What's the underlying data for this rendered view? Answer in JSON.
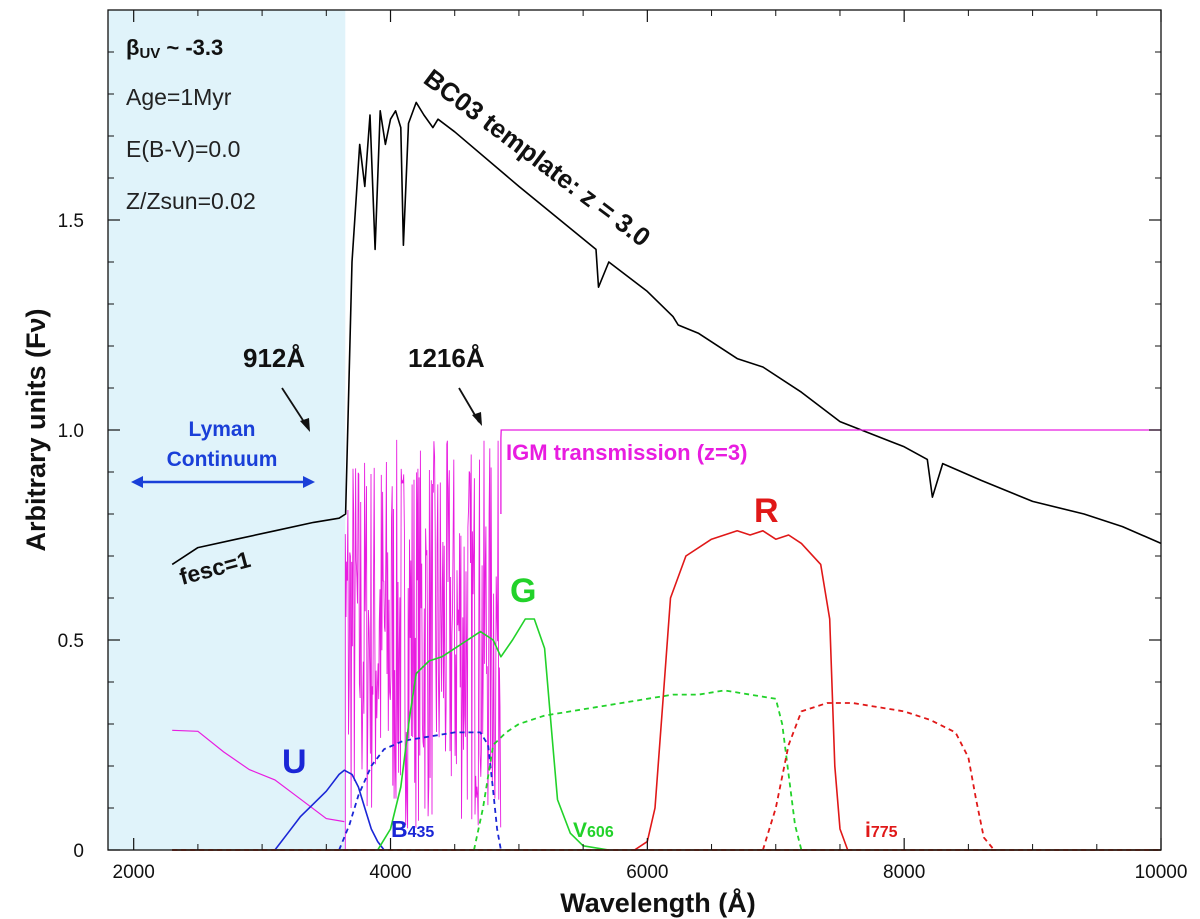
{
  "chart_data": {
    "type": "line",
    "xlabel": "Wavelength (Å)",
    "ylabel": "Arbitrary units (Fν)",
    "xlim": [
      1800,
      10000
    ],
    "ylim": [
      0,
      2.0
    ],
    "x_ticks": [
      "2000",
      "4000",
      "6000",
      "8000",
      "10000"
    ],
    "y_ticks": [
      "0",
      "0.5",
      "1.0",
      "1.5"
    ],
    "grid": false,
    "shaded_region": {
      "x": [
        1800,
        3648
      ],
      "label": "Lyman Continuum"
    },
    "annotations": {
      "beta_prefix": "β",
      "beta_sub": "UV",
      "beta_value": " ~ -3.3",
      "age": "Age=1Myr",
      "ebv": "E(B-V)=0.0",
      "metallicity": "Z/Zsun=0.02",
      "template": "BC03 template: z = 3.0",
      "lyman_break": "912Å",
      "lya": "1216Å",
      "lyman_line1": "Lyman",
      "lyman_line2": "Continuum",
      "fesc": "fesc=1",
      "igm": "IGM transmission (z=3)"
    },
    "series": [
      {
        "name": "",
        "label_text": "BC03 template: z = 3.0",
        "color": "#000000",
        "style": "solid",
        "points": [
          [
            2300,
            0.68
          ],
          [
            2500,
            0.72
          ],
          [
            2800,
            0.74
          ],
          [
            3100,
            0.76
          ],
          [
            3400,
            0.78
          ],
          [
            3600,
            0.79
          ],
          [
            3650,
            0.8
          ],
          [
            3700,
            1.4
          ],
          [
            3760,
            1.68
          ],
          [
            3800,
            1.58
          ],
          [
            3840,
            1.75
          ],
          [
            3880,
            1.43
          ],
          [
            3920,
            1.76
          ],
          [
            3960,
            1.68
          ],
          [
            4000,
            1.74
          ],
          [
            4040,
            1.76
          ],
          [
            4080,
            1.72
          ],
          [
            4100,
            1.44
          ],
          [
            4140,
            1.73
          ],
          [
            4200,
            1.78
          ],
          [
            4260,
            1.75
          ],
          [
            4330,
            1.72
          ],
          [
            4370,
            1.74
          ],
          [
            4500,
            1.71
          ],
          [
            5000,
            1.58
          ],
          [
            5400,
            1.48
          ],
          [
            5600,
            1.43
          ],
          [
            5620,
            1.34
          ],
          [
            5700,
            1.4
          ],
          [
            6000,
            1.33
          ],
          [
            6200,
            1.27
          ],
          [
            6240,
            1.25
          ],
          [
            6400,
            1.23
          ],
          [
            6700,
            1.17
          ],
          [
            6900,
            1.15
          ],
          [
            7200,
            1.09
          ],
          [
            7500,
            1.02
          ],
          [
            8000,
            0.96
          ],
          [
            8180,
            0.93
          ],
          [
            8220,
            0.84
          ],
          [
            8300,
            0.92
          ],
          [
            8600,
            0.88
          ],
          [
            9000,
            0.83
          ],
          [
            9400,
            0.8
          ],
          [
            9700,
            0.77
          ],
          [
            10000,
            0.73
          ]
        ]
      },
      {
        "name": "",
        "label_text": "IGM transmission (z=3)",
        "color": "#e81ce0",
        "style": "igm",
        "points": [
          [
            2300,
            0.3
          ],
          [
            2500,
            0.27
          ],
          [
            2700,
            0.24
          ],
          [
            2900,
            0.2
          ],
          [
            3100,
            0.16
          ],
          [
            3300,
            0.12
          ],
          [
            3500,
            0.08
          ],
          [
            3640,
            0.06
          ],
          [
            3648,
            0.98
          ],
          [
            4860,
            0.98
          ],
          [
            4862,
            1.0
          ],
          [
            10000,
            1.0
          ]
        ],
        "forest_range": [
          3648,
          4860
        ],
        "forest_min": 0.05,
        "forest_max": 0.98
      },
      {
        "name": "U",
        "color": "#1a26d6",
        "style": "solid",
        "points": [
          [
            3100,
            0.0
          ],
          [
            3200,
            0.04
          ],
          [
            3300,
            0.08
          ],
          [
            3400,
            0.11
          ],
          [
            3500,
            0.14
          ],
          [
            3550,
            0.16
          ],
          [
            3600,
            0.18
          ],
          [
            3640,
            0.19
          ],
          [
            3700,
            0.18
          ],
          [
            3750,
            0.15
          ],
          [
            3800,
            0.1
          ],
          [
            3850,
            0.05
          ],
          [
            3900,
            0.02
          ],
          [
            3950,
            0.0
          ]
        ]
      },
      {
        "name": "B435",
        "color": "#1a26d6",
        "style": "dashed",
        "points": [
          [
            3600,
            0.0
          ],
          [
            3680,
            0.06
          ],
          [
            3750,
            0.13
          ],
          [
            3850,
            0.2
          ],
          [
            3950,
            0.24
          ],
          [
            4100,
            0.26
          ],
          [
            4300,
            0.27
          ],
          [
            4500,
            0.28
          ],
          [
            4700,
            0.28
          ],
          [
            4760,
            0.25
          ],
          [
            4800,
            0.14
          ],
          [
            4830,
            0.05
          ],
          [
            4860,
            0.0
          ]
        ]
      },
      {
        "name": "G",
        "color": "#22d22a",
        "style": "solid",
        "points": [
          [
            3900,
            0.0
          ],
          [
            4000,
            0.05
          ],
          [
            4080,
            0.15
          ],
          [
            4150,
            0.32
          ],
          [
            4200,
            0.42
          ],
          [
            4300,
            0.45
          ],
          [
            4400,
            0.46
          ],
          [
            4500,
            0.48
          ],
          [
            4600,
            0.5
          ],
          [
            4700,
            0.52
          ],
          [
            4800,
            0.5
          ],
          [
            4860,
            0.46
          ],
          [
            4950,
            0.5
          ],
          [
            5050,
            0.55
          ],
          [
            5120,
            0.55
          ],
          [
            5200,
            0.48
          ],
          [
            5250,
            0.3
          ],
          [
            5300,
            0.12
          ],
          [
            5400,
            0.04
          ],
          [
            5500,
            0.01
          ],
          [
            5700,
            0.0
          ]
        ]
      },
      {
        "name": "V606",
        "color": "#22d22a",
        "style": "dashed",
        "points": [
          [
            4650,
            0.0
          ],
          [
            4720,
            0.1
          ],
          [
            4800,
            0.25
          ],
          [
            4900,
            0.28
          ],
          [
            5000,
            0.3
          ],
          [
            5200,
            0.32
          ],
          [
            5400,
            0.33
          ],
          [
            5600,
            0.34
          ],
          [
            5800,
            0.35
          ],
          [
            6000,
            0.36
          ],
          [
            6200,
            0.37
          ],
          [
            6400,
            0.37
          ],
          [
            6600,
            0.38
          ],
          [
            6800,
            0.37
          ],
          [
            7000,
            0.36
          ],
          [
            7050,
            0.3
          ],
          [
            7100,
            0.18
          ],
          [
            7150,
            0.06
          ],
          [
            7200,
            0.0
          ]
        ]
      },
      {
        "name": "R",
        "color": "#e01818",
        "style": "solid",
        "points": [
          [
            5900,
            0.0
          ],
          [
            6000,
            0.02
          ],
          [
            6060,
            0.1
          ],
          [
            6120,
            0.35
          ],
          [
            6180,
            0.6
          ],
          [
            6300,
            0.7
          ],
          [
            6500,
            0.74
          ],
          [
            6700,
            0.76
          ],
          [
            6800,
            0.75
          ],
          [
            6900,
            0.76
          ],
          [
            7000,
            0.74
          ],
          [
            7100,
            0.75
          ],
          [
            7200,
            0.73
          ],
          [
            7350,
            0.68
          ],
          [
            7420,
            0.55
          ],
          [
            7460,
            0.2
          ],
          [
            7500,
            0.05
          ],
          [
            7560,
            0.0
          ]
        ]
      },
      {
        "name": "i775",
        "color": "#e01818",
        "style": "dashed",
        "points": [
          [
            6900,
            0.0
          ],
          [
            7000,
            0.1
          ],
          [
            7100,
            0.25
          ],
          [
            7200,
            0.33
          ],
          [
            7400,
            0.35
          ],
          [
            7600,
            0.35
          ],
          [
            7800,
            0.34
          ],
          [
            8000,
            0.33
          ],
          [
            8200,
            0.31
          ],
          [
            8400,
            0.28
          ],
          [
            8500,
            0.22
          ],
          [
            8560,
            0.12
          ],
          [
            8620,
            0.03
          ],
          [
            8700,
            0.0
          ]
        ]
      }
    ],
    "band_labels": [
      {
        "text": "U",
        "color": "#1a26d6"
      },
      {
        "text": "B",
        "sub": "435",
        "color": "#1a26d6"
      },
      {
        "text": "G",
        "color": "#22d22a"
      },
      {
        "text": "V",
        "sub": "606",
        "color": "#22d22a"
      },
      {
        "text": "R",
        "color": "#e01818"
      },
      {
        "text": "i",
        "sub": "775",
        "color": "#e01818"
      }
    ]
  }
}
